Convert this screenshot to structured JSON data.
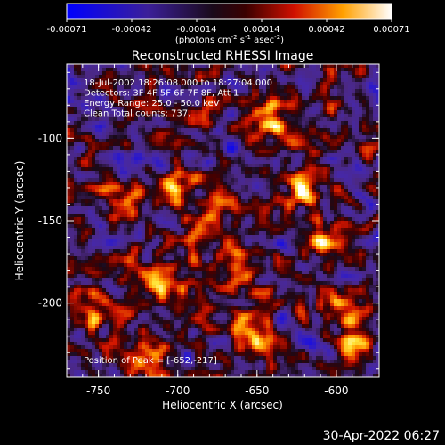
{
  "chart_data": {
    "type": "heatmap",
    "title": "Reconstructed RHESSI Image",
    "xlabel": "Heliocentric X (arcsec)",
    "ylabel": "Heliocentric Y (arcsec)",
    "xlim": [
      -770,
      -573
    ],
    "ylim": [
      -245,
      -55
    ],
    "x_ticks": [
      -750,
      -700,
      -650,
      -600
    ],
    "y_ticks": [
      -100,
      -150,
      -200
    ],
    "colorbar": {
      "range": [
        -0.00071,
        0.00071
      ],
      "ticks": [
        "-0.00071",
        "-0.00042",
        "-0.00014",
        "0.00014",
        "0.00042",
        "0.00071"
      ],
      "units_main": "(photons cm",
      "units_exp1": "-2",
      "units_mid1": " s",
      "units_exp2": "-1",
      "units_mid2": " asec",
      "units_exp3": "-2",
      "units_end": ")",
      "colormap": "blue-purple-red-yellow-white"
    },
    "info_lines": [
      "18-Jul-2002 18:26:08.000 to 18:27:04.000",
      "Detectors: 3F 4F 5F 6F 7F 8F, Att 1",
      "Energy Range: 25.0 - 50.0 keV",
      "Clean     Total counts: 737."
    ],
    "peak_label": "Position of Peak = [-652,-217]",
    "peak": [
      -652,
      -217
    ],
    "sources": [
      {
        "x": -652,
        "y": -217,
        "amp": 1.0
      },
      {
        "x": -705,
        "y": -190,
        "amp": 0.95
      },
      {
        "x": -640,
        "y": -90,
        "amp": 0.9
      },
      {
        "x": -620,
        "y": -130,
        "amp": 0.85
      },
      {
        "x": -735,
        "y": -140,
        "amp": 0.8
      },
      {
        "x": -680,
        "y": -150,
        "amp": 0.8
      },
      {
        "x": -665,
        "y": -180,
        "amp": 0.7
      },
      {
        "x": -600,
        "y": -200,
        "amp": 0.75
      },
      {
        "x": -755,
        "y": -205,
        "amp": 0.65
      },
      {
        "x": -700,
        "y": -130,
        "amp": 0.6
      },
      {
        "x": -720,
        "y": -230,
        "amp": 0.6
      },
      {
        "x": -585,
        "y": -225,
        "amp": 0.55
      },
      {
        "x": -610,
        "y": -160,
        "amp": 0.6
      },
      {
        "x": -730,
        "y": -175,
        "amp": 0.6
      }
    ]
  },
  "footer_date": "30-Apr-2022 06:27"
}
